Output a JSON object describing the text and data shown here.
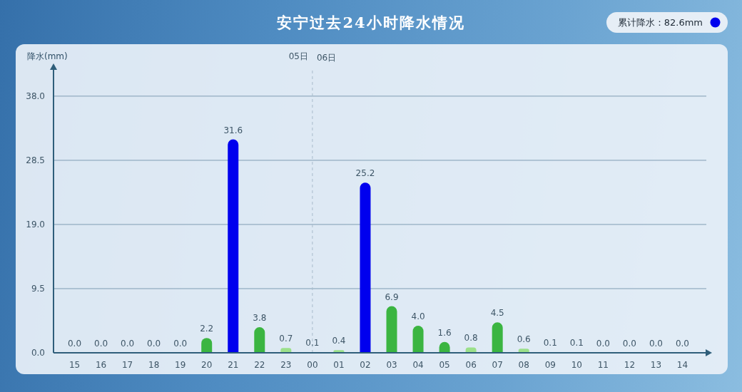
{
  "chart_data": {
    "type": "bar",
    "title": "安宁过去24小时降水情况",
    "ylabel": "降水(mm)",
    "categories": [
      "15",
      "16",
      "17",
      "18",
      "19",
      "20",
      "21",
      "22",
      "23",
      "00",
      "01",
      "02",
      "03",
      "04",
      "05",
      "06",
      "07",
      "08",
      "09",
      "10",
      "11",
      "12",
      "13",
      "14"
    ],
    "values": [
      0,
      0,
      0,
      0,
      0,
      2.2,
      31.6,
      3.8,
      0.7,
      0.1,
      0.4,
      25.2,
      6.9,
      4.0,
      1.6,
      0.8,
      4.5,
      0.6,
      0.1,
      0.1,
      0,
      0,
      0,
      0
    ],
    "colors": [
      "#ffffff",
      "#ffffff",
      "#ffffff",
      "#ffffff",
      "#ffffff",
      "#3bb541",
      "#0000ee",
      "#3bb541",
      "#9be08a",
      "#9be08a",
      "#9be08a",
      "#0000ee",
      "#3bb541",
      "#3bb541",
      "#3bb541",
      "#9be08a",
      "#3bb541",
      "#9be08a",
      "#9be08a",
      "#9be08a",
      "#ffffff",
      "#ffffff",
      "#ffffff",
      "#ffffff"
    ],
    "value_labels": [
      "0.0",
      "0.0",
      "0.0",
      "0.0",
      "0.0",
      "2.2",
      "31.6",
      "3.8",
      "0.7",
      "0.1",
      "0.4",
      "25.2",
      "6.9",
      "4.0",
      "1.6",
      "0.8",
      "4.5",
      "0.6",
      "0.1",
      "0.1",
      "0.0",
      "0.0",
      "0.0",
      "0.0"
    ],
    "ylim": [
      0,
      42
    ],
    "yticks": [
      {
        "value": 0,
        "label": "0.0"
      },
      9.5,
      {
        "value": 19,
        "label": "19.0"
      },
      28.5,
      {
        "value": 38,
        "label": "38.0"
      }
    ],
    "grid": "y",
    "ref_lines": [
      {
        "axis": "x",
        "value": "00",
        "label": "06日",
        "line_style": "dashed",
        "color": "#a9bccb"
      }
    ],
    "annotations": [
      "累计降水：82.6mm",
      "05日"
    ]
  }
}
